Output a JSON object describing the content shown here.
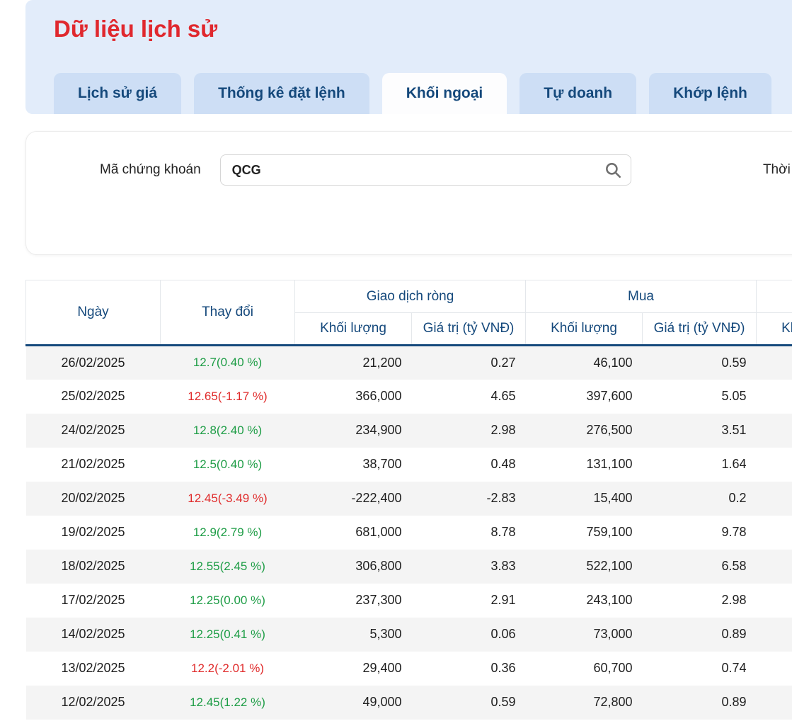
{
  "page": {
    "title": "Dữ liệu lịch sử"
  },
  "tabs": [
    {
      "label": "Lịch sử giá",
      "slug": "lich-su-gia",
      "active": false
    },
    {
      "label": "Thống kê đặt lệnh",
      "slug": "thong-ke-dat-lenh",
      "active": false
    },
    {
      "label": "Khối ngoại",
      "slug": "khoi-ngoai",
      "active": true
    },
    {
      "label": "Tự doanh",
      "slug": "tu-doanh",
      "active": false
    },
    {
      "label": "Khớp lệnh",
      "slug": "khop-lenh",
      "active": false
    }
  ],
  "filter": {
    "symbol_label": "Mã chứng khoán",
    "symbol_value": "QCG",
    "search_icon": "magnifier-icon",
    "time_label": "Thời gian"
  },
  "colors": {
    "accent_red": "#e0282e",
    "accent_blue": "#15497c",
    "band_blue": "#e2ecfa",
    "tab_blue": "#cddef5",
    "positive_green": "#1e9d46",
    "negative_red": "#e02b2b",
    "row_alt_gray": "#f4f4f4"
  },
  "table": {
    "columns": {
      "date": "Ngày",
      "change": "Thay đổi",
      "net_group": "Giao dịch ròng",
      "buy_group": "Mua",
      "volume": "Khối lượng",
      "value": "Giá trị (tỷ VNĐ)"
    },
    "rows": [
      {
        "date": "26/02/2025",
        "change": "12.7(0.40 %)",
        "dir": "up",
        "net_vol": "21,200",
        "net_val": "0.27",
        "buy_vol": "46,100",
        "buy_val": "0.59"
      },
      {
        "date": "25/02/2025",
        "change": "12.65(-1.17 %)",
        "dir": "down",
        "net_vol": "366,000",
        "net_val": "4.65",
        "buy_vol": "397,600",
        "buy_val": "5.05"
      },
      {
        "date": "24/02/2025",
        "change": "12.8(2.40 %)",
        "dir": "up",
        "net_vol": "234,900",
        "net_val": "2.98",
        "buy_vol": "276,500",
        "buy_val": "3.51"
      },
      {
        "date": "21/02/2025",
        "change": "12.5(0.40 %)",
        "dir": "up",
        "net_vol": "38,700",
        "net_val": "0.48",
        "buy_vol": "131,100",
        "buy_val": "1.64"
      },
      {
        "date": "20/02/2025",
        "change": "12.45(-3.49 %)",
        "dir": "down",
        "net_vol": "-222,400",
        "net_val": "-2.83",
        "buy_vol": "15,400",
        "buy_val": "0.2"
      },
      {
        "date": "19/02/2025",
        "change": "12.9(2.79 %)",
        "dir": "up",
        "net_vol": "681,000",
        "net_val": "8.78",
        "buy_vol": "759,100",
        "buy_val": "9.78"
      },
      {
        "date": "18/02/2025",
        "change": "12.55(2.45 %)",
        "dir": "up",
        "net_vol": "306,800",
        "net_val": "3.83",
        "buy_vol": "522,100",
        "buy_val": "6.58"
      },
      {
        "date": "17/02/2025",
        "change": "12.25(0.00 %)",
        "dir": "up",
        "net_vol": "237,300",
        "net_val": "2.91",
        "buy_vol": "243,100",
        "buy_val": "2.98"
      },
      {
        "date": "14/02/2025",
        "change": "12.25(0.41 %)",
        "dir": "up",
        "net_vol": "5,300",
        "net_val": "0.06",
        "buy_vol": "73,000",
        "buy_val": "0.89"
      },
      {
        "date": "13/02/2025",
        "change": "12.2(-2.01 %)",
        "dir": "down",
        "net_vol": "29,400",
        "net_val": "0.36",
        "buy_vol": "60,700",
        "buy_val": "0.74"
      },
      {
        "date": "12/02/2025",
        "change": "12.45(1.22 %)",
        "dir": "up",
        "net_vol": "49,000",
        "net_val": "0.59",
        "buy_vol": "72,800",
        "buy_val": "0.89"
      }
    ]
  }
}
